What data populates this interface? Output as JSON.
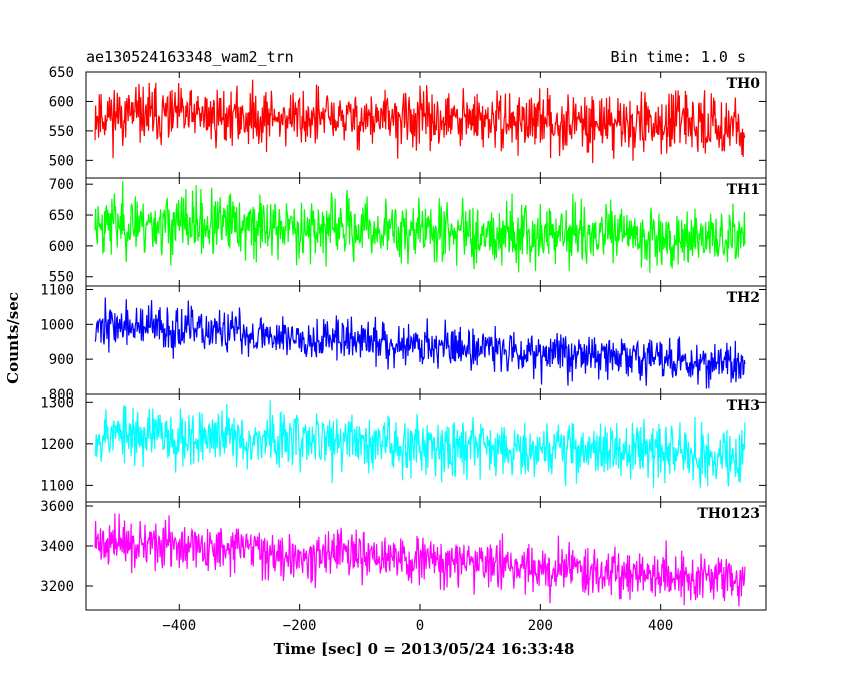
{
  "header": {
    "title": "ae130524163348_wam2_trn",
    "bin_time": "Bin time: 1.0 s"
  },
  "axes": {
    "ylabel": "Counts/sec",
    "xlabel": "Time [sec] 0 = 2013/05/24 16:33:48"
  },
  "chart_data": {
    "type": "line",
    "title": "ae130524163348_wam2_trn",
    "subtitle": "Bin time: 1.0 s",
    "xlabel": "Time [sec] 0 = 2013/05/24 16:33:48",
    "ylabel": "Counts/sec",
    "xlim": [
      -555,
      575
    ],
    "x_start": -540,
    "x_end": 540,
    "x_step": 1,
    "x_ticks": [
      -400,
      -200,
      0,
      200,
      400
    ],
    "grid": false,
    "panels": [
      {
        "name": "TH0",
        "color": "#ff0000",
        "ylim": [
          470,
          650
        ],
        "y_ticks": [
          500,
          550,
          600,
          650
        ],
        "trend_start": 578,
        "trend_end": 560,
        "noise_sd": 24,
        "seed": 11
      },
      {
        "name": "TH1",
        "color": "#00ff00",
        "ylim": [
          535,
          710
        ],
        "y_ticks": [
          550,
          600,
          650,
          700
        ],
        "trend_start": 638,
        "trend_end": 612,
        "noise_sd": 25,
        "seed": 23
      },
      {
        "name": "TH2",
        "color": "#0000ff",
        "ylim": [
          800,
          1110
        ],
        "y_ticks": [
          800,
          900,
          1000,
          1100
        ],
        "trend_start": 1000,
        "trend_end": 885,
        "noise_sd": 31,
        "seed": 37
      },
      {
        "name": "TH3",
        "color": "#00ffff",
        "ylim": [
          1060,
          1320
        ],
        "y_ticks": [
          1100,
          1200,
          1300
        ],
        "trend_start": 1225,
        "trend_end": 1175,
        "noise_sd": 34,
        "seed": 53
      },
      {
        "name": "TH0123",
        "color": "#ff00ff",
        "ylim": [
          3080,
          3620
        ],
        "y_ticks": [
          3200,
          3400,
          3600
        ],
        "trend_start": 3420,
        "trend_end": 3235,
        "noise_sd": 58,
        "seed": 71
      }
    ]
  }
}
